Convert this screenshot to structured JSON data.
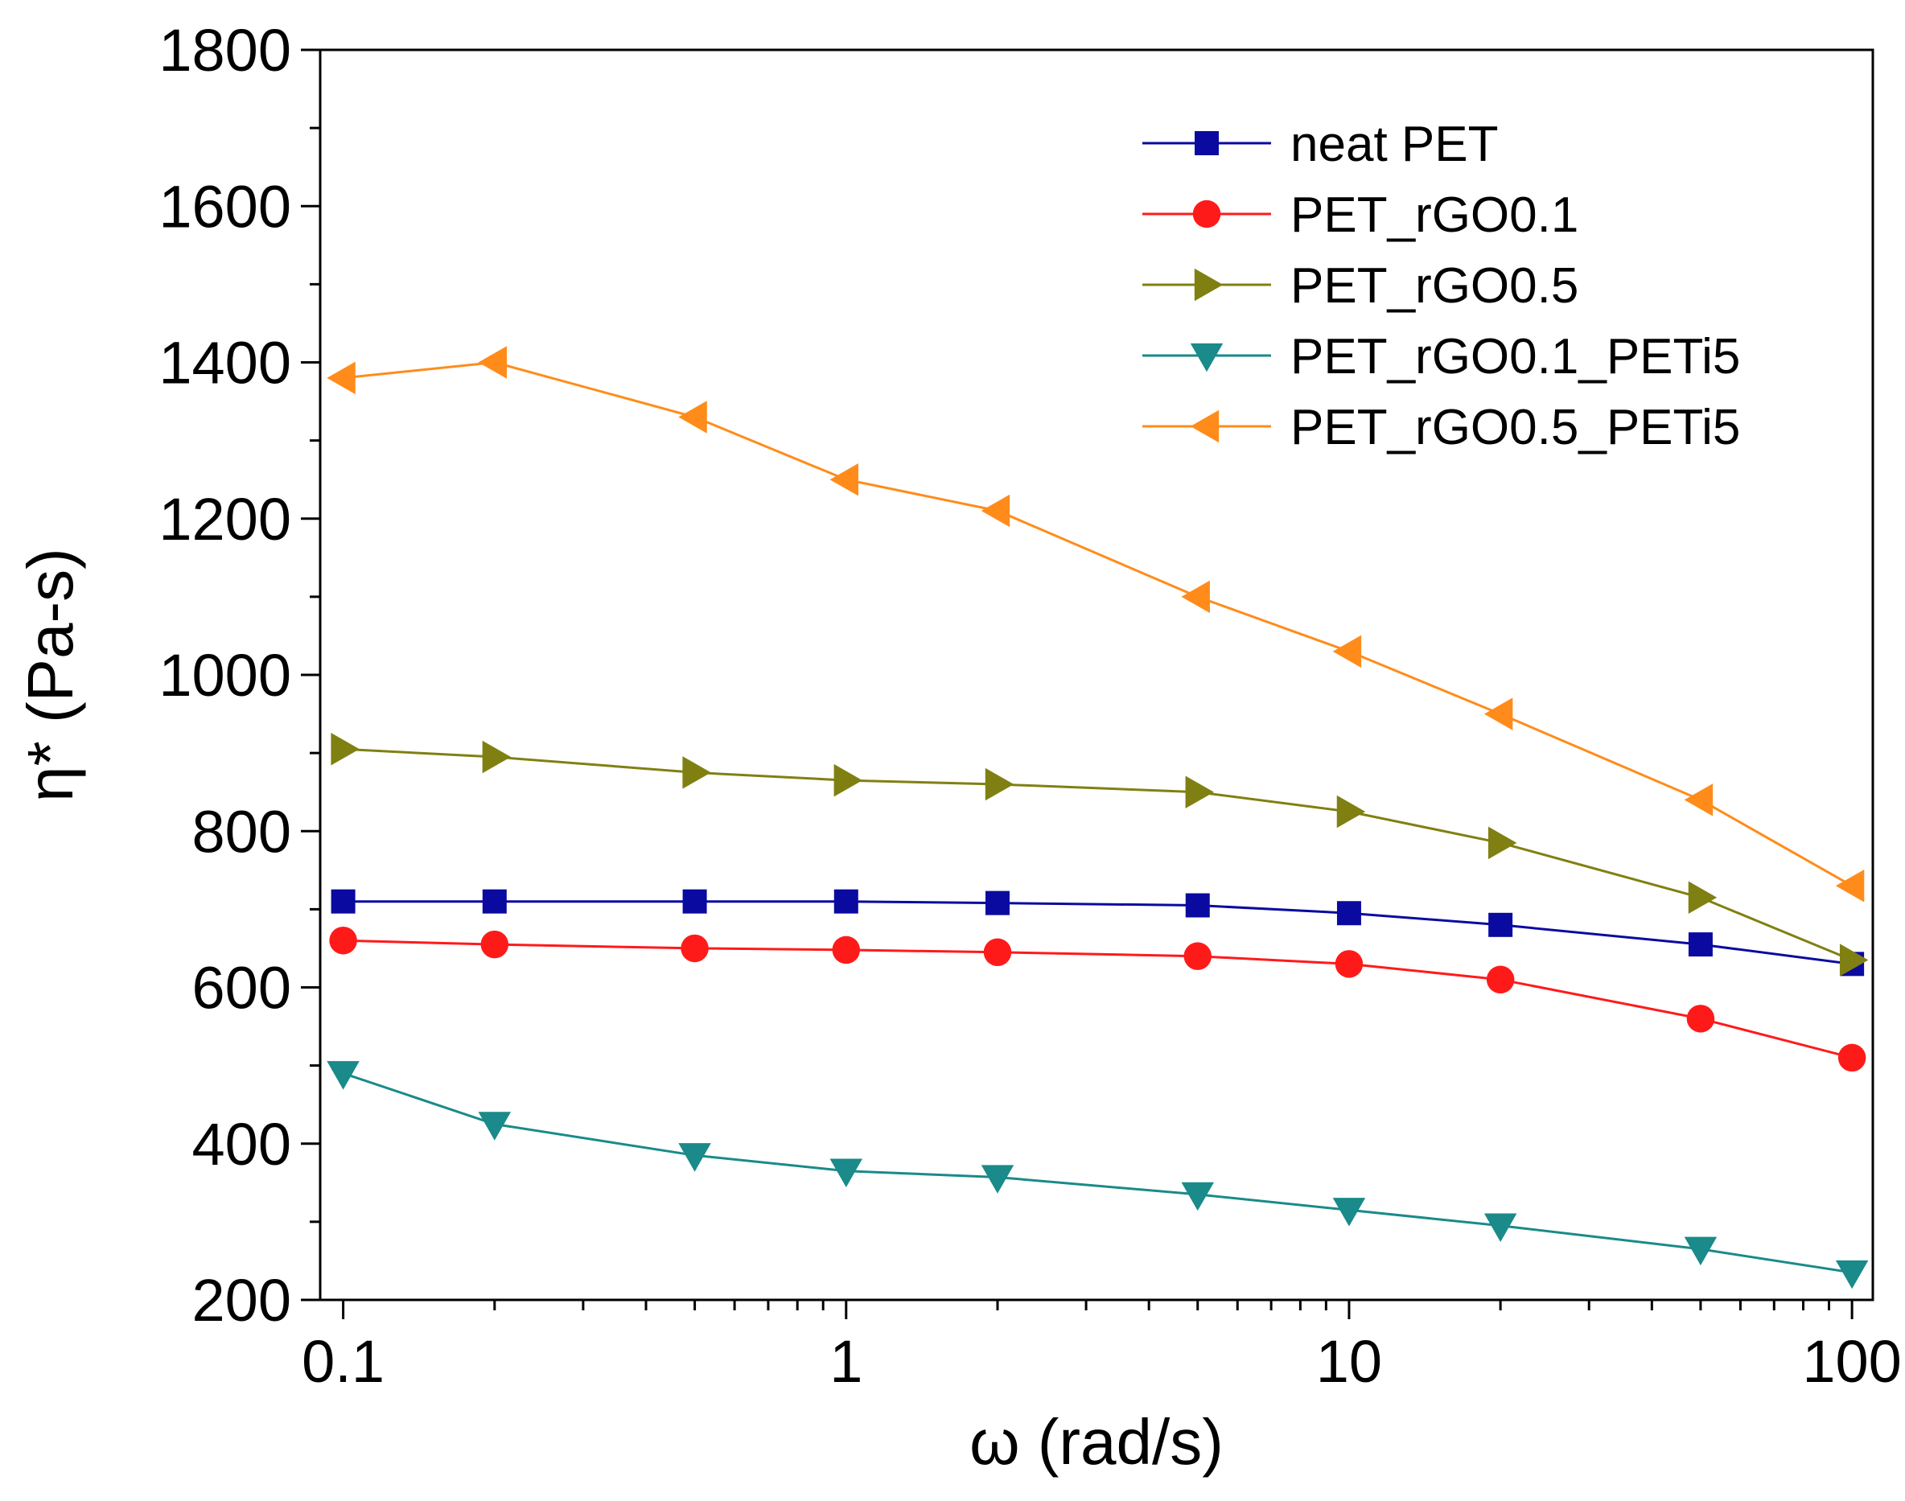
{
  "chart_data": {
    "type": "line",
    "xlabel": "ω (rad/s)",
    "ylabel": "η* (Pa-s)",
    "xscale": "log",
    "xlim": [
      0.09,
      110
    ],
    "ylim": [
      200,
      1800
    ],
    "xticks": [
      0.1,
      1,
      10,
      100
    ],
    "xtick_labels": [
      "0.1",
      "1",
      "10",
      "100"
    ],
    "yticks": [
      200,
      400,
      600,
      800,
      1000,
      1200,
      1400,
      1600,
      1800
    ],
    "ytick_labels": [
      "200",
      "400",
      "600",
      "800",
      "1000",
      "1200",
      "1400",
      "1600",
      "1800"
    ],
    "grid": false,
    "legend_position": "top-right",
    "x": [
      0.1,
      0.2,
      0.5,
      1,
      2,
      5,
      10,
      20,
      50,
      100
    ],
    "series": [
      {
        "name": "neat PET",
        "color": "#0a0aa0",
        "marker": "square",
        "values": [
          710,
          710,
          710,
          710,
          708,
          705,
          695,
          680,
          655,
          630
        ]
      },
      {
        "name": "PET_rGO0.1",
        "color": "#ff1a1a",
        "marker": "circle",
        "values": [
          660,
          655,
          650,
          648,
          645,
          640,
          630,
          610,
          560,
          510
        ]
      },
      {
        "name": "PET_rGO0.5",
        "color": "#808012",
        "marker": "triangle-right",
        "values": [
          905,
          895,
          875,
          865,
          860,
          850,
          825,
          785,
          715,
          635
        ]
      },
      {
        "name": "PET_rGO0.1_PETi5",
        "color": "#1a8a8a",
        "marker": "triangle-down",
        "values": [
          490,
          425,
          385,
          365,
          357,
          335,
          315,
          295,
          265,
          235
        ]
      },
      {
        "name": "PET_rGO0.5_PETi5",
        "color": "#ff8c1a",
        "marker": "triangle-left",
        "values": [
          1380,
          1400,
          1330,
          1250,
          1210,
          1100,
          1030,
          950,
          840,
          730
        ]
      }
    ]
  }
}
